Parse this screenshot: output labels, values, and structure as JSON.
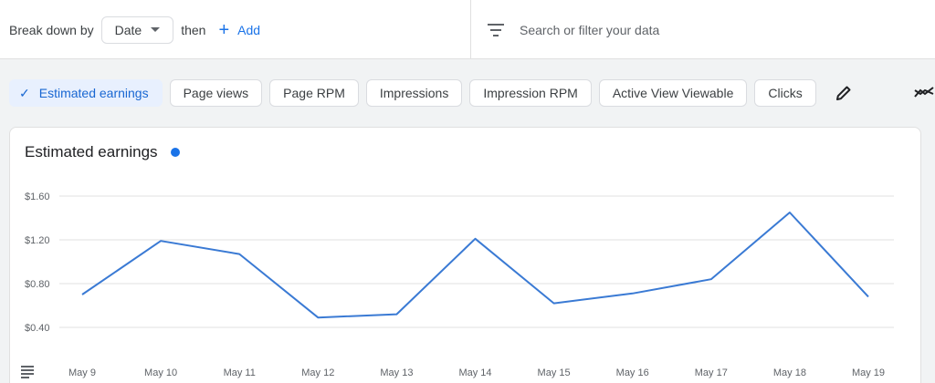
{
  "toolbar": {
    "breakdown_label": "Break down by",
    "date_label": "Date",
    "then_label": "then",
    "add_label": "Add"
  },
  "search": {
    "placeholder": "Search or filter your data"
  },
  "metrics": [
    {
      "label": "Estimated earnings",
      "active": true
    },
    {
      "label": "Page views",
      "active": false
    },
    {
      "label": "Page RPM",
      "active": false
    },
    {
      "label": "Impressions",
      "active": false
    },
    {
      "label": "Impression RPM",
      "active": false
    },
    {
      "label": "Active View Viewable",
      "active": false
    },
    {
      "label": "Clicks",
      "active": false
    }
  ],
  "icons": {
    "check": "check-icon",
    "plus": "plus-icon",
    "filter": "filter-icon",
    "edit": "pencil-icon",
    "trend": "trend-icon",
    "table": "table-icon"
  },
  "colors": {
    "accent": "#1a73e8",
    "active_chip_bg": "#e8f0fe",
    "series_line": "#3a7ad4"
  },
  "chart_data": {
    "type": "line",
    "title": "Estimated earnings",
    "categories": [
      "May 9",
      "May 10",
      "May 11",
      "May 12",
      "May 13",
      "May 14",
      "May 15",
      "May 16",
      "May 17",
      "May 18",
      "May 19"
    ],
    "series": [
      {
        "values": [
          0.7,
          1.19,
          1.07,
          0.49,
          0.52,
          1.21,
          0.62,
          0.71,
          0.84,
          1.45,
          0.68
        ]
      }
    ],
    "y_ticks": [
      "$0.40",
      "$0.80",
      "$1.20",
      "$1.60"
    ],
    "y_tick_values": [
      0.4,
      0.8,
      1.2,
      1.6
    ],
    "ylim": [
      0.4,
      1.6
    ],
    "grid": true,
    "legend": "title-dot"
  }
}
